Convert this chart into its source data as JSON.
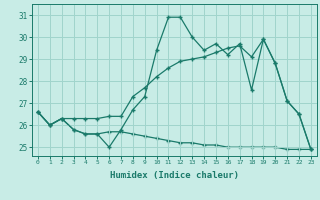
{
  "xlabel": "Humidex (Indice chaleur)",
  "ylim": [
    24.6,
    31.5
  ],
  "yticks": [
    25,
    26,
    27,
    28,
    29,
    30,
    31
  ],
  "xticks": [
    0,
    1,
    2,
    3,
    4,
    5,
    6,
    7,
    8,
    9,
    10,
    11,
    12,
    13,
    14,
    15,
    16,
    17,
    18,
    19,
    20,
    21,
    22,
    23
  ],
  "bg_color": "#c8ece6",
  "grid_color": "#a0d4cc",
  "line_color": "#1a7a6a",
  "line1_y": [
    26.6,
    26.0,
    26.3,
    25.8,
    25.6,
    25.6,
    25.0,
    25.8,
    26.7,
    27.3,
    29.4,
    30.9,
    30.9,
    30.0,
    29.4,
    29.7,
    29.2,
    29.7,
    27.6,
    29.9,
    28.8,
    27.1,
    26.5,
    24.9
  ],
  "line2_y": [
    26.6,
    26.0,
    26.3,
    26.3,
    26.3,
    26.3,
    26.4,
    26.4,
    27.3,
    27.7,
    28.2,
    28.6,
    28.9,
    29.0,
    29.1,
    29.3,
    29.5,
    29.6,
    29.1,
    29.9,
    28.8,
    27.1,
    26.5,
    24.9
  ],
  "line3_y": [
    26.6,
    26.0,
    26.3,
    25.8,
    25.6,
    25.6,
    25.7,
    25.7,
    25.6,
    25.5,
    25.4,
    25.3,
    25.2,
    25.2,
    25.1,
    25.1,
    25.0,
    25.0,
    25.0,
    25.0,
    25.0,
    24.9,
    24.9,
    24.9
  ]
}
